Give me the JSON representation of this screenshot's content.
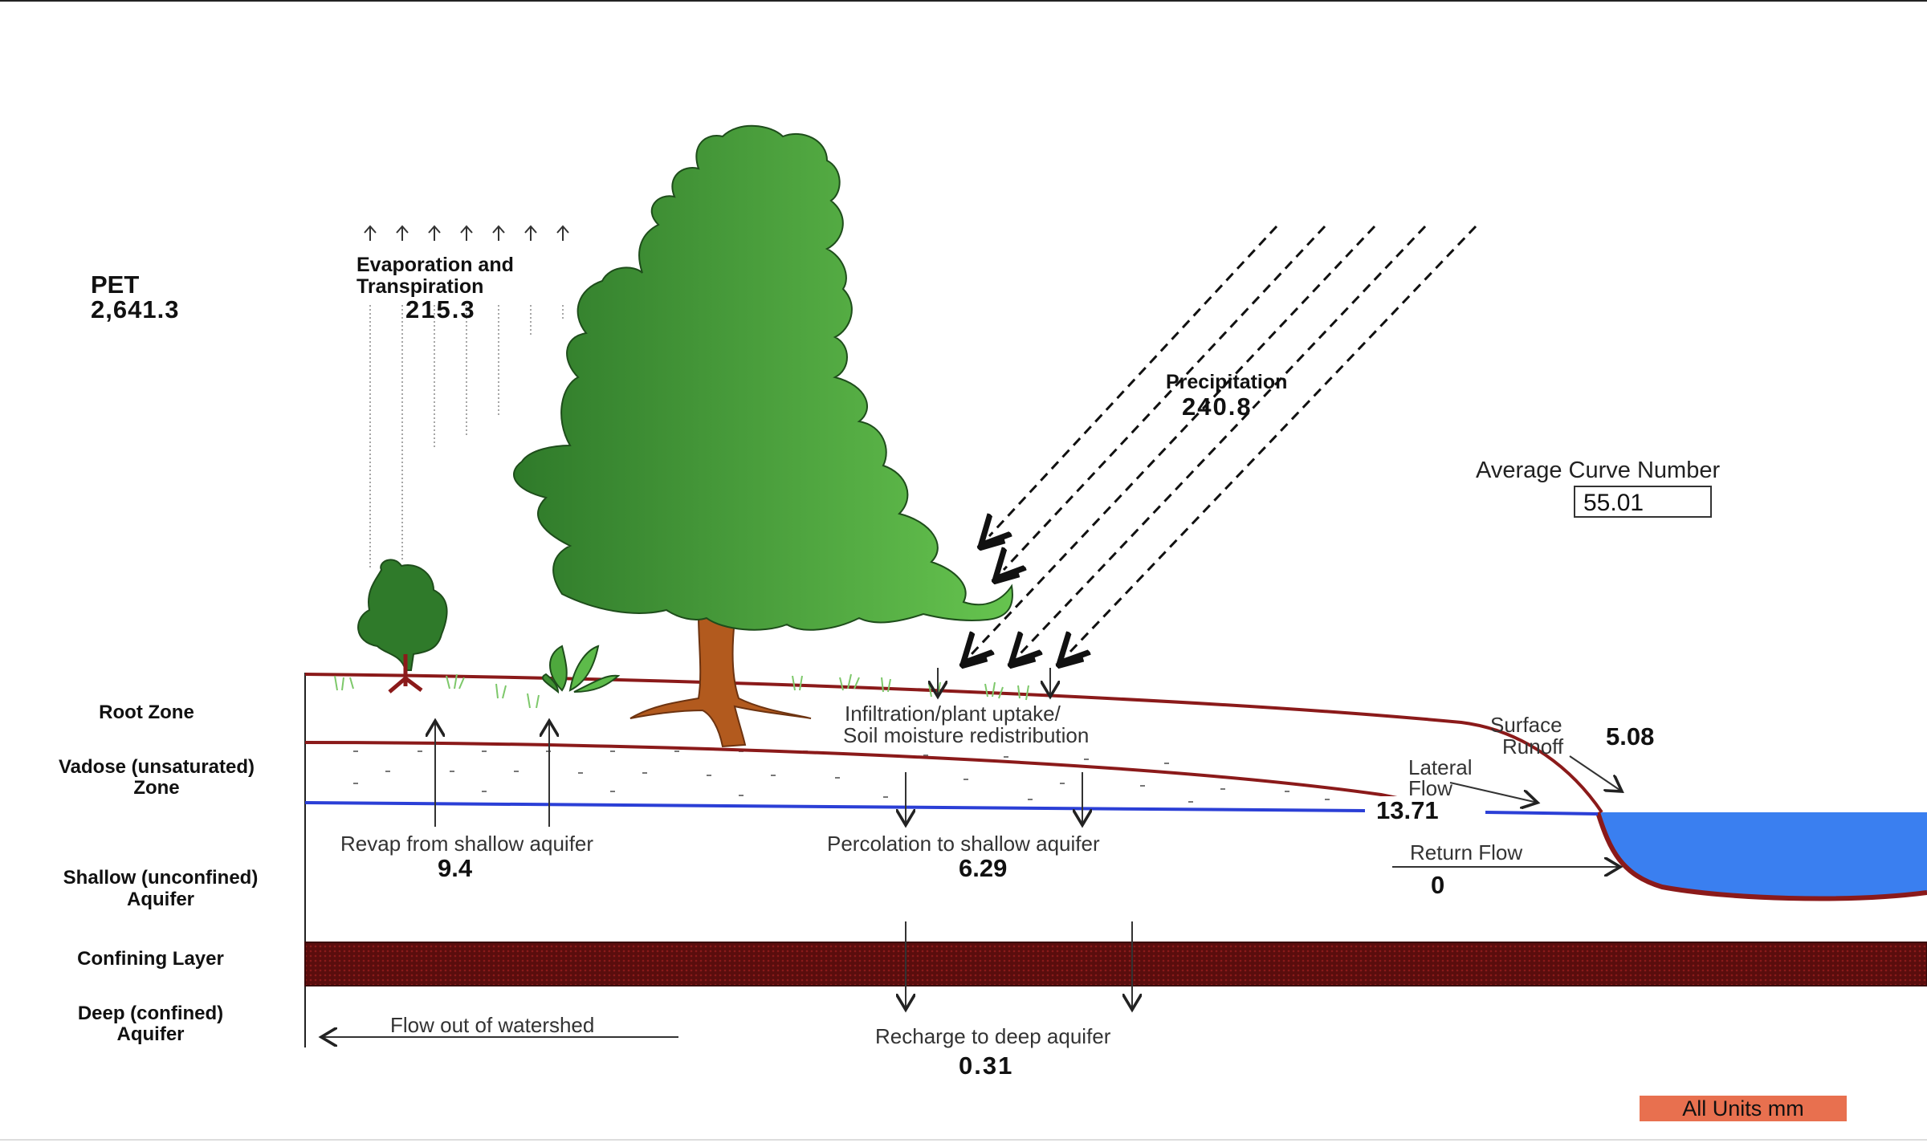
{
  "pet": {
    "label": "PET",
    "value": "2,641.3"
  },
  "evapotranspiration": {
    "label_line1": "Evaporation and",
    "label_line2": "Transpiration",
    "value": "215.3"
  },
  "precipitation": {
    "label": "Precipitation",
    "value": "240.8"
  },
  "curve_number": {
    "label": "Average Curve Number",
    "value": "55.01"
  },
  "zones": {
    "root": "Root Zone",
    "vadose_line1": "Vadose (unsaturated)",
    "vadose_line2": "Zone",
    "shallow_line1": "Shallow (unconfined)",
    "shallow_line2": "Aquifer",
    "confining": "Confining Layer",
    "deep_line1": "Deep (confined)",
    "deep_line2": "Aquifer"
  },
  "infiltration": {
    "line1": "Infiltration/plant uptake/",
    "line2": "Soil moisture redistribution"
  },
  "surface_runoff": {
    "label_line1": "Surface",
    "label_line2": "Runoff",
    "value": "5.08"
  },
  "lateral_flow": {
    "label_line1": "Lateral",
    "label_line2": "Flow",
    "value": "13.71"
  },
  "return_flow": {
    "label": "Return Flow",
    "value": "0"
  },
  "revap": {
    "label": "Revap from shallow aquifer",
    "value": "9.4"
  },
  "percolation": {
    "label": "Percolation to shallow aquifer",
    "value": "6.29"
  },
  "recharge": {
    "label": "Recharge to deep aquifer",
    "value": "0.31"
  },
  "outflow": {
    "label": "Flow out of watershed"
  },
  "units_badge": "All Units mm",
  "colors": {
    "soil_line": "#8b1a1a",
    "water_table": "#2b3fd6",
    "stream": "#3a7ff0",
    "confining_layer": "#6b0f0f",
    "foliage_light": "#5dbb4a",
    "foliage_dark": "#2f7a2a",
    "trunk": "#b25a1e",
    "units_badge": "#e8704f"
  }
}
